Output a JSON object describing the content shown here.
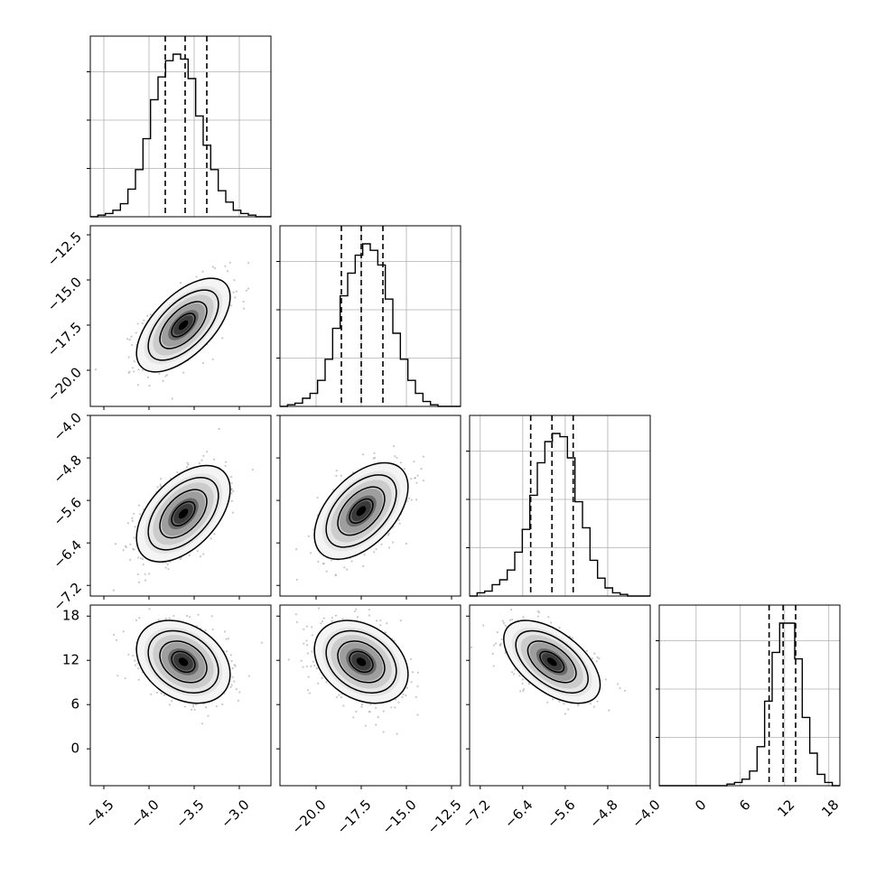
{
  "chart_data": {
    "type": "corner",
    "n_params": 4,
    "params": [
      {
        "range": [
          -4.65,
          -2.65
        ],
        "ticks": [
          -4.5,
          -4.0,
          -3.5,
          -3.0
        ],
        "tick_labels": [
          "−4.5",
          "−4.0",
          "−3.5",
          "−3.0"
        ],
        "quantiles": [
          -3.82,
          -3.6,
          -3.36
        ]
      },
      {
        "range": [
          -22.0,
          -12.0
        ],
        "ticks": [
          -20.0,
          -17.5,
          -15.0,
          -12.5
        ],
        "tick_labels": [
          "−20.0",
          "−17.5",
          "−15.0",
          "−12.5"
        ],
        "quantiles": [
          -18.6,
          -17.5,
          -16.3
        ]
      },
      {
        "range": [
          -7.4,
          -4.0
        ],
        "ticks": [
          -7.2,
          -6.4,
          -5.6,
          -4.8,
          -4.0
        ],
        "tick_labels": [
          "−7.2",
          "−6.4",
          "−5.6",
          "−4.8",
          "−4.0"
        ],
        "quantiles": [
          -6.25,
          -5.85,
          -5.45
        ]
      },
      {
        "range": [
          -5.0,
          19.5
        ],
        "ticks": [
          0,
          6,
          12,
          18
        ],
        "tick_labels": [
          "0",
          "6",
          "12",
          "18"
        ],
        "quantiles": [
          9.9,
          11.8,
          13.5
        ]
      }
    ],
    "diagonal_histograms": [
      [
        0.0,
        0.01,
        0.02,
        0.04,
        0.08,
        0.17,
        0.29,
        0.48,
        0.72,
        0.86,
        0.96,
        1.0,
        0.97,
        0.85,
        0.62,
        0.44,
        0.29,
        0.16,
        0.09,
        0.04,
        0.02,
        0.01,
        0.0,
        0.0
      ],
      [
        0.0,
        0.01,
        0.02,
        0.05,
        0.08,
        0.16,
        0.29,
        0.48,
        0.68,
        0.82,
        0.93,
        1.0,
        0.96,
        0.87,
        0.66,
        0.45,
        0.29,
        0.16,
        0.08,
        0.03,
        0.01,
        0.0,
        0.0,
        0.0
      ],
      [
        0.0,
        0.02,
        0.03,
        0.07,
        0.1,
        0.16,
        0.27,
        0.41,
        0.62,
        0.82,
        0.95,
        1.0,
        0.98,
        0.85,
        0.58,
        0.42,
        0.22,
        0.11,
        0.05,
        0.02,
        0.01,
        0.0,
        0.0,
        0.0
      ],
      [
        0.0,
        0.0,
        0.0,
        0.0,
        0.0,
        0.0,
        0.0,
        0.0,
        0.0,
        0.01,
        0.02,
        0.04,
        0.09,
        0.24,
        0.52,
        0.82,
        1.0,
        1.0,
        0.78,
        0.42,
        0.2,
        0.07,
        0.02,
        0.0
      ]
    ],
    "joint_2d": [
      {
        "x_param": 0,
        "y_param": 1,
        "center": [
          -3.62,
          -17.5
        ],
        "sigma": [
          0.24,
          1.2
        ],
        "rho": 0.6
      },
      {
        "x_param": 0,
        "y_param": 2,
        "center": [
          -3.62,
          -5.85
        ],
        "sigma": [
          0.24,
          0.42
        ],
        "rho": 0.5
      },
      {
        "x_param": 1,
        "y_param": 2,
        "center": [
          -17.5,
          -5.8
        ],
        "sigma": [
          1.2,
          0.42
        ],
        "rho": 0.5
      },
      {
        "x_param": 0,
        "y_param": 3,
        "center": [
          -3.62,
          11.8
        ],
        "sigma": [
          0.24,
          2.6
        ],
        "rho": -0.3
      },
      {
        "x_param": 1,
        "y_param": 3,
        "center": [
          -17.5,
          11.8
        ],
        "sigma": [
          1.2,
          2.6
        ],
        "rho": -0.3
      },
      {
        "x_param": 2,
        "y_param": 3,
        "center": [
          -5.85,
          11.8
        ],
        "sigma": [
          0.42,
          2.6
        ],
        "rho": -0.55
      }
    ],
    "contour_levels_sigma": [
      0.5,
      1.0,
      1.5,
      2.0
    ],
    "grid": true,
    "xlabel": "",
    "ylabel": "",
    "title": "",
    "colors": {
      "axes": "#000000",
      "grid": "#b0b0b0",
      "scatter": "#9a9a9a",
      "density_dark": "#000000",
      "density_light": "#ffffff"
    }
  }
}
